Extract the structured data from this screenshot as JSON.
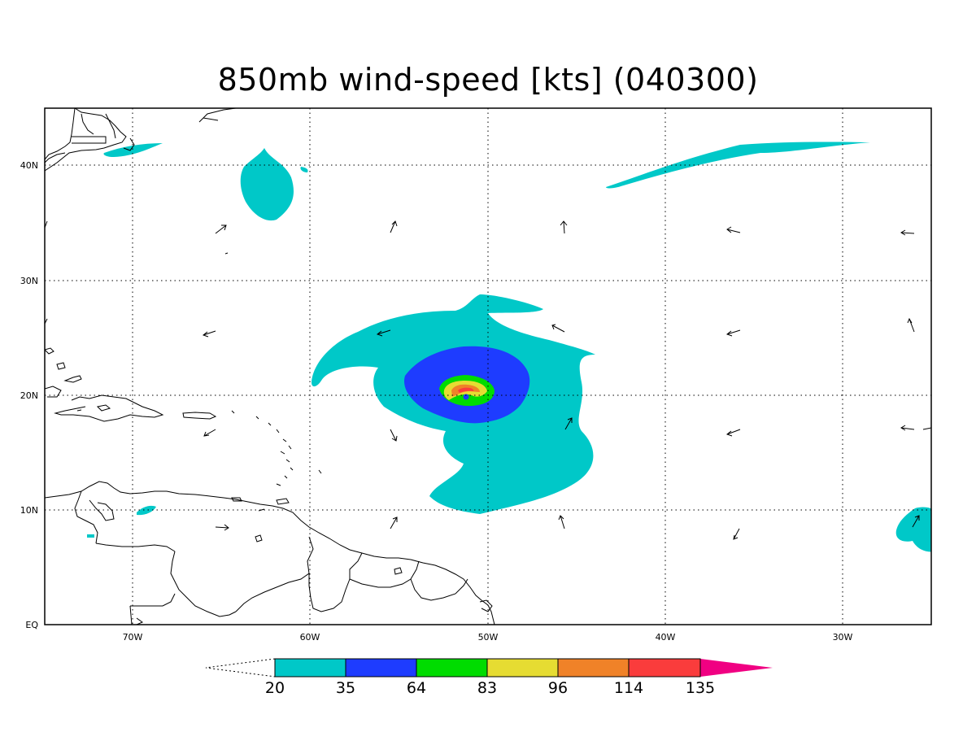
{
  "title": "850mb wind-speed [kts] (040300)",
  "axes": {
    "lon_labels": [
      "70W",
      "60W",
      "50W",
      "40W",
      "30W"
    ],
    "lat_labels": [
      "40N",
      "30N",
      "20N",
      "10N",
      "EQ"
    ],
    "lon_values": [
      -70,
      -60,
      -50,
      -40,
      -30
    ],
    "lat_values": [
      40,
      30,
      20,
      10,
      0
    ],
    "lon_range": [
      -75,
      -25
    ],
    "lat_range": [
      0,
      45
    ],
    "grid": "dotted"
  },
  "colorbar": {
    "labels": [
      "20",
      "35",
      "64",
      "83",
      "96",
      "114",
      "135"
    ],
    "colors": [
      "#00c8c8",
      "#1e3cff",
      "#00dc00",
      "#e6dc32",
      "#f08228",
      "#fa3c3c",
      "#f00082"
    ]
  },
  "wind_field": {
    "contour_levels_kts": [
      20,
      35,
      64,
      83,
      96,
      114,
      135
    ],
    "storm_center": {
      "lon": -51,
      "lat": 20
    }
  }
}
